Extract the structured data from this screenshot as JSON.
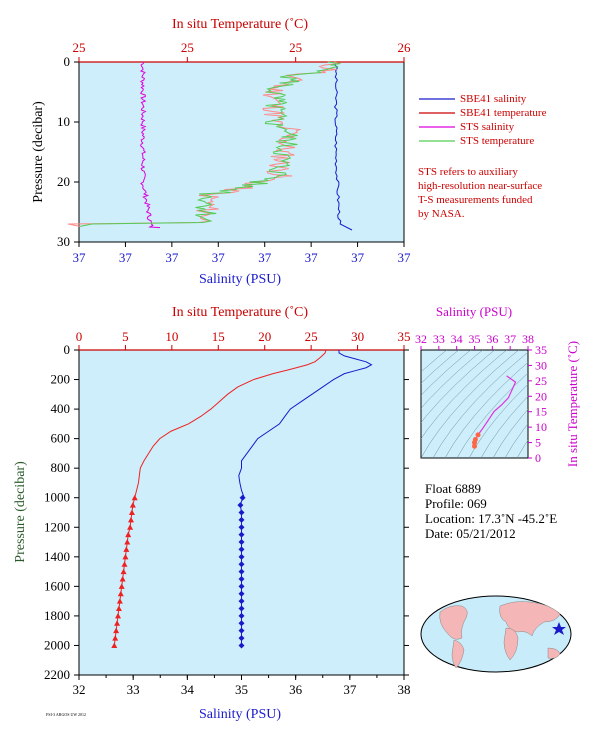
{
  "chart_data": [
    {
      "id": "top",
      "type": "line",
      "top_axis_label": "In situ Temperature (˚C)",
      "top_ticks": [
        "25",
        "25",
        "25",
        "26"
      ],
      "bottom_axis_label": "Salinity (PSU)",
      "bottom_ticks": [
        "37",
        "37",
        "37",
        "37",
        "37",
        "37",
        "37",
        "37"
      ],
      "ylabel": "Pressure (decibar)",
      "y_ticks": [
        "0",
        "10",
        "20",
        "30"
      ],
      "ylim": [
        0,
        30
      ],
      "legend": [
        "SBE41 salinity",
        "SBE41 temperature",
        "STS salinity",
        "STS temperature"
      ],
      "note": [
        "STS refers to auxiliary",
        "high-resolution near-surface",
        "T-S measurements funded",
        "by NASA."
      ],
      "series_colors": {
        "sbe_sal": "#1a1acc",
        "sbe_temp": "#cc0000",
        "sts_sal": "#dd00dd",
        "sts_temp": "#55cc55",
        "sts_temp_alt": "#ff8888"
      }
    },
    {
      "id": "profile",
      "type": "line",
      "top_axis_label": "In situ Temperature (˚C)",
      "top_ticks": [
        "0",
        "5",
        "10",
        "15",
        "20",
        "25",
        "30",
        "35"
      ],
      "xlim_temp": [
        0,
        35
      ],
      "bottom_axis_label": "Salinity (PSU)",
      "bottom_ticks": [
        "32",
        "33",
        "34",
        "35",
        "36",
        "37",
        "38"
      ],
      "xlim_sal": [
        32,
        38
      ],
      "ylabel": "Pressure (decibar)",
      "y_ticks": [
        "0",
        "200",
        "400",
        "600",
        "800",
        "1000",
        "1200",
        "1400",
        "1600",
        "1800",
        "2000",
        "2200"
      ],
      "ylim": [
        0,
        2200
      ],
      "temperature": {
        "pressure": [
          0,
          20,
          50,
          80,
          100,
          130,
          160,
          200,
          250,
          300,
          350,
          400,
          450,
          500,
          550,
          600,
          650,
          700,
          750,
          800,
          850,
          900,
          950,
          1000
        ],
        "values": [
          26.6,
          26.5,
          26.0,
          25.4,
          24.6,
          22.8,
          20.9,
          18.8,
          17.1,
          16.0,
          15.1,
          14.2,
          13.1,
          11.8,
          9.9,
          8.7,
          8.0,
          7.5,
          7.0,
          6.6,
          6.5,
          6.4,
          6.2,
          6.0
        ]
      },
      "temperature_deep": {
        "pressure": [
          1000,
          1050,
          1100,
          1150,
          1200,
          1250,
          1300,
          1350,
          1400,
          1450,
          1500,
          1550,
          1600,
          1650,
          1700,
          1750,
          1800,
          1850,
          1900,
          1950,
          2000
        ],
        "values": [
          6.0,
          5.8,
          5.7,
          5.6,
          5.5,
          5.3,
          5.2,
          5.1,
          5.0,
          4.9,
          4.8,
          4.7,
          4.6,
          4.5,
          4.4,
          4.3,
          4.2,
          4.1,
          4.0,
          3.9,
          3.8
        ]
      },
      "salinity": {
        "pressure": [
          0,
          20,
          40,
          60,
          80,
          100,
          120,
          140,
          160,
          200,
          250,
          300,
          350,
          400,
          450,
          500,
          550,
          600,
          650,
          700,
          750,
          800,
          850,
          900,
          950,
          1000
        ],
        "values": [
          36.8,
          36.8,
          36.9,
          37.1,
          37.3,
          37.4,
          37.3,
          37.1,
          36.9,
          36.7,
          36.5,
          36.3,
          36.1,
          35.9,
          35.8,
          35.7,
          35.5,
          35.3,
          35.2,
          35.1,
          35.0,
          35.0,
          34.95,
          34.97,
          35.0,
          35.05
        ]
      },
      "salinity_deep": {
        "pressure": [
          1000,
          1050,
          1100,
          1150,
          1200,
          1250,
          1300,
          1350,
          1400,
          1450,
          1500,
          1550,
          1600,
          1650,
          1700,
          1750,
          1800,
          1850,
          1900,
          1950,
          2000
        ],
        "values": [
          35.02,
          34.98,
          35.0,
          35.0,
          35.0,
          35.0,
          35.0,
          35.0,
          35.0,
          35.0,
          35.0,
          35.0,
          35.0,
          35.0,
          35.0,
          35.0,
          35.0,
          35.0,
          35.0,
          35.0,
          35.0
        ]
      },
      "colors": {
        "temperature": "#ee2222",
        "salinity": "#1a1acc"
      }
    },
    {
      "id": "ts",
      "type": "scatter",
      "top_axis_label": "Salinity (PSU)",
      "top_ticks": [
        "32",
        "33",
        "34",
        "35",
        "36",
        "37",
        "38"
      ],
      "xlim": [
        32,
        38
      ],
      "right_axis_label": "In situ Temperature (˚C)",
      "right_ticks": [
        "0",
        "5",
        "10",
        "15",
        "20",
        "25",
        "30",
        "35"
      ],
      "ylim": [
        0,
        35
      ],
      "curve": {
        "salinity": [
          35.0,
          35.0,
          35.05,
          35.2,
          35.5,
          35.8,
          36.1,
          36.5,
          36.9,
          37.3,
          36.8
        ],
        "temperature": [
          3.8,
          5.0,
          6.0,
          7.5,
          9.9,
          12.5,
          15.1,
          17.1,
          19.5,
          24.6,
          26.6
        ]
      }
    }
  ],
  "info": {
    "float": "Float  6889",
    "profile": "Profile:  069",
    "location": "Location:  17.3˚N  -45.2˚E",
    "date": "Date:  05/21/2012"
  },
  "footer": "FSI-3 ARGOS UW 2012"
}
